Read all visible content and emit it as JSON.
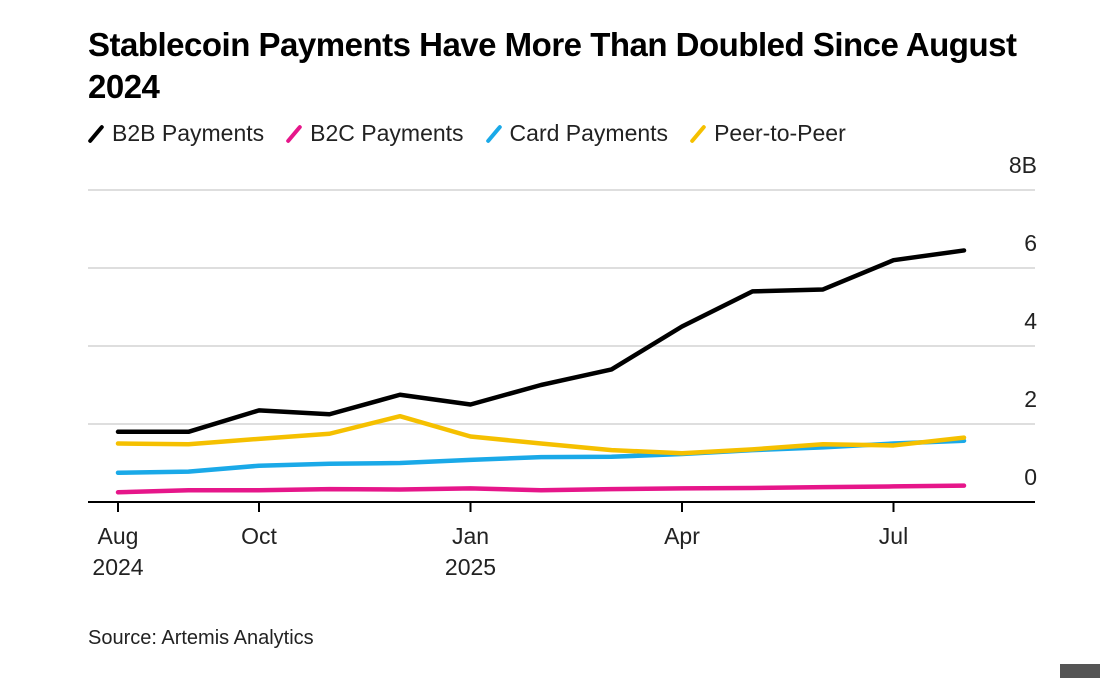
{
  "chart_data": {
    "type": "line",
    "title": "Stablecoin Payments Have More Than Doubled Since August 2024",
    "source": "Source: Artemis Analytics",
    "categories": [
      "Aug 2024",
      null,
      "Oct",
      null,
      null,
      "Jan 2025",
      null,
      null,
      "Apr",
      null,
      null,
      "Jul",
      null
    ],
    "series": [
      {
        "name": "B2B Payments",
        "color": "#000000",
        "values": [
          1.8,
          1.8,
          2.35,
          2.25,
          2.75,
          2.5,
          3.0,
          3.4,
          4.5,
          5.4,
          5.45,
          6.2,
          6.45
        ]
      },
      {
        "name": "B2C Payments",
        "color": "#e6168a",
        "values": [
          0.25,
          0.3,
          0.3,
          0.33,
          0.32,
          0.35,
          0.3,
          0.33,
          0.35,
          0.36,
          0.38,
          0.4,
          0.42
        ]
      },
      {
        "name": "Card Payments",
        "color": "#1aa9e8",
        "values": [
          0.75,
          0.78,
          0.93,
          0.98,
          1.0,
          1.08,
          1.15,
          1.16,
          1.23,
          1.33,
          1.4,
          1.5,
          1.57
        ]
      },
      {
        "name": "Peer-to-Peer",
        "color": "#f5c000",
        "values": [
          1.5,
          1.48,
          1.62,
          1.75,
          2.2,
          1.68,
          1.5,
          1.33,
          1.25,
          1.35,
          1.48,
          1.45,
          1.65
        ]
      }
    ],
    "ylim": [
      0,
      8
    ],
    "yticks": [
      0,
      2,
      4,
      6,
      {
        "value": 8,
        "label": "8B"
      }
    ],
    "grid": true
  }
}
